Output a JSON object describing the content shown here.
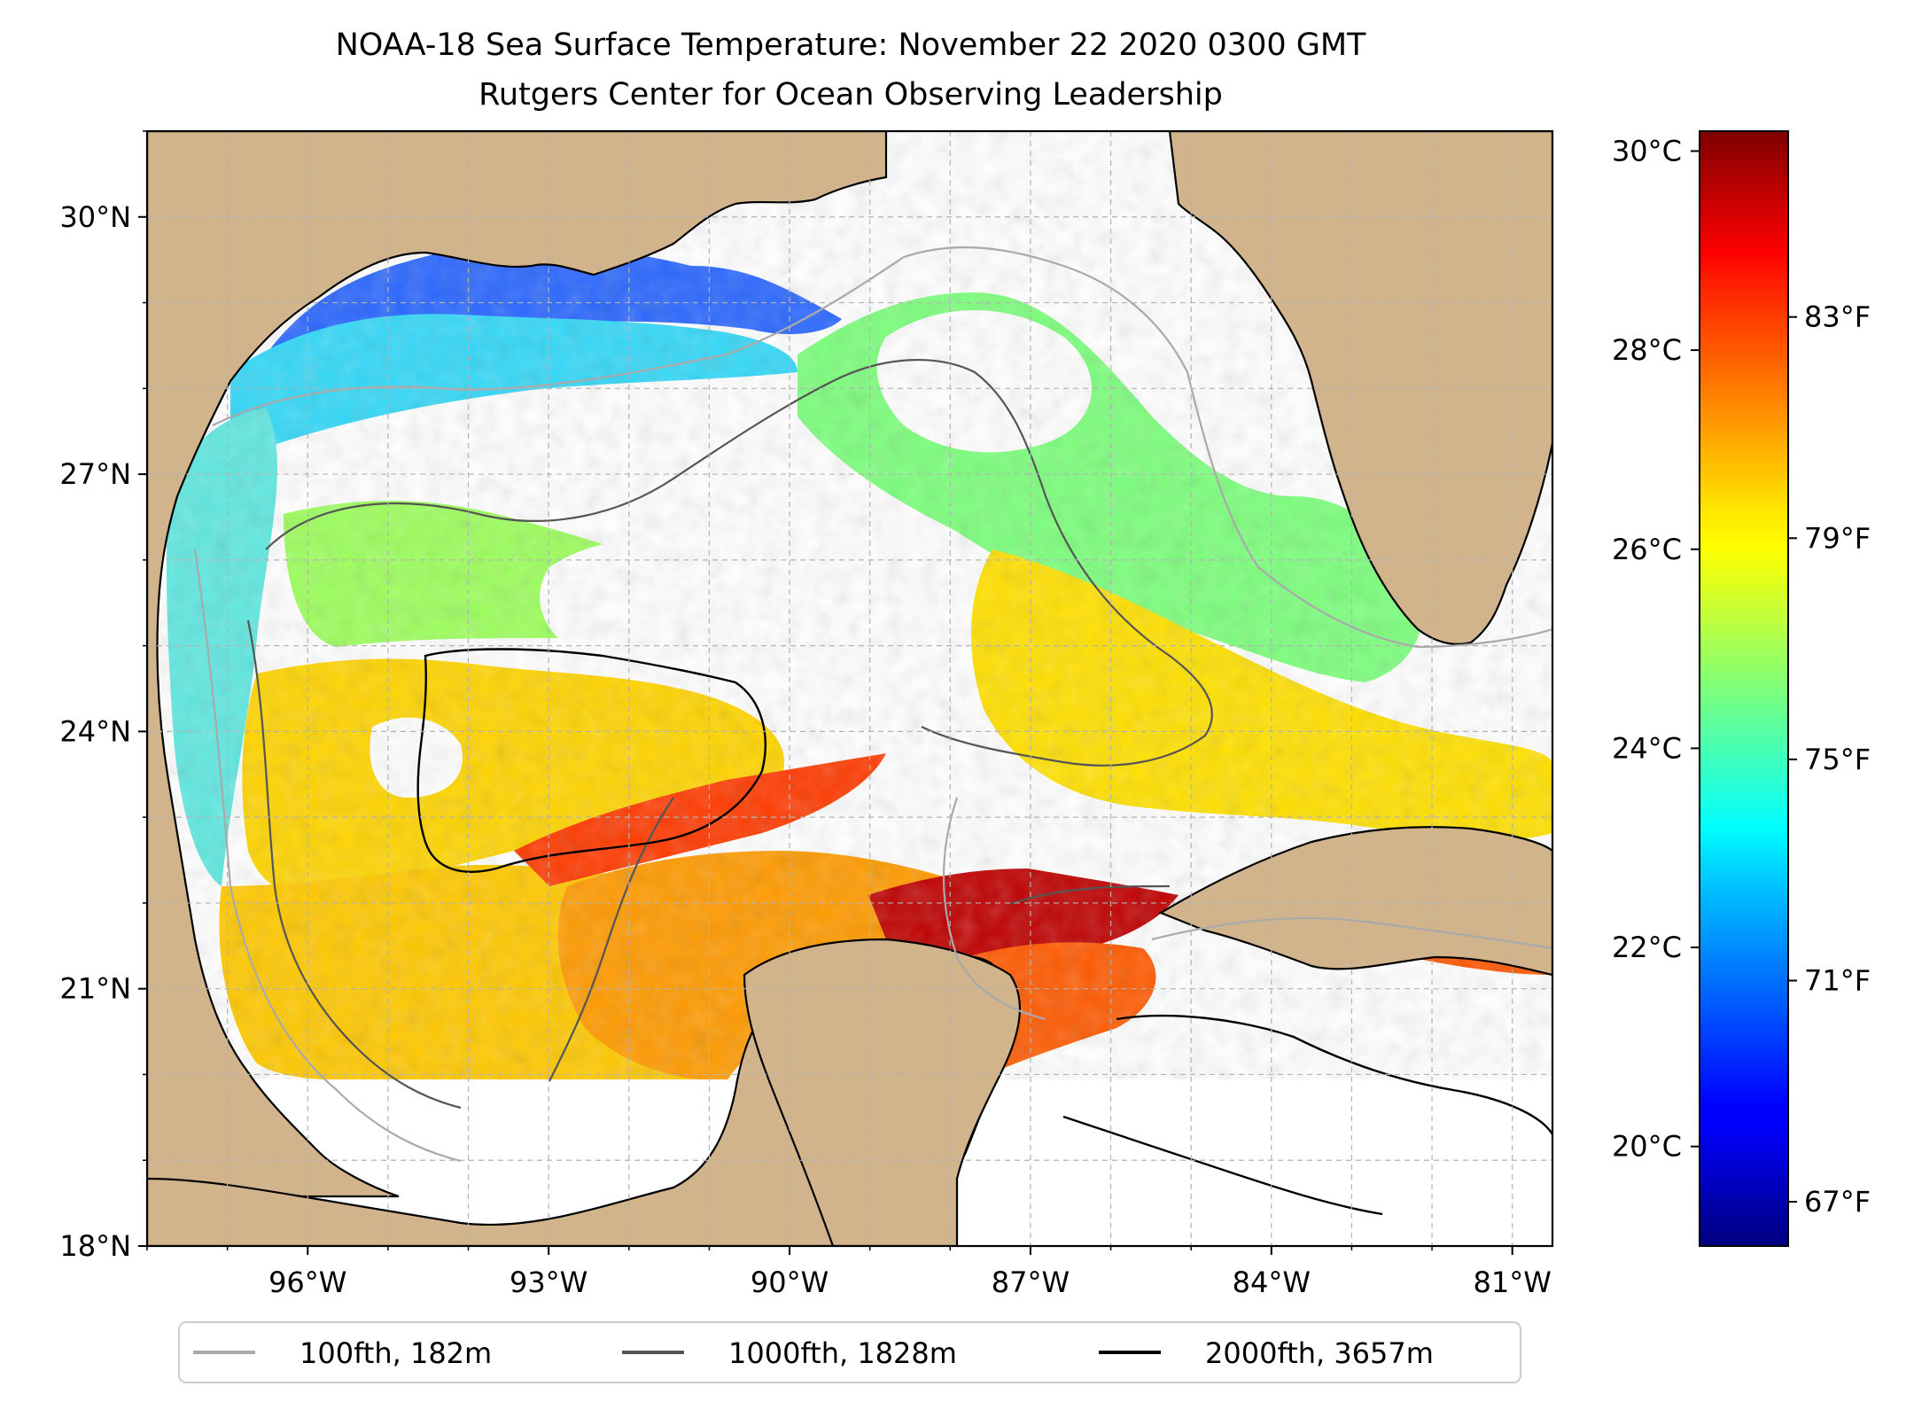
{
  "title": {
    "line1": "NOAA-18 Sea Surface Temperature: November 22 2020 0300 GMT",
    "line2": "Rutgers Center for Ocean Observing Leadership"
  },
  "map": {
    "lon_range": [
      -98.0,
      -80.5
    ],
    "lat_range": [
      18.0,
      31.0
    ],
    "x_ticks": [
      {
        "lon": -96,
        "label": "96°W"
      },
      {
        "lon": -93,
        "label": "93°W"
      },
      {
        "lon": -90,
        "label": "90°W"
      },
      {
        "lon": -87,
        "label": "87°W"
      },
      {
        "lon": -84,
        "label": "84°W"
      },
      {
        "lon": -81,
        "label": "81°W"
      }
    ],
    "y_ticks": [
      {
        "lat": 18,
        "label": "18°N"
      },
      {
        "lat": 21,
        "label": "21°N"
      },
      {
        "lat": 24,
        "label": "24°N"
      },
      {
        "lat": 27,
        "label": "27°N"
      },
      {
        "lat": 30,
        "label": "30°N"
      }
    ],
    "grid_step_deg": 1,
    "colors": {
      "land": "#d2b48c",
      "no_data": "#ffffff",
      "coast": "#000000",
      "grid": "#b3b3b3"
    }
  },
  "colorbar": {
    "cmap": "jet",
    "range_c": [
      19.0,
      30.2
    ],
    "celsius_ticks": [
      {
        "value": 20,
        "label": "20°C"
      },
      {
        "value": 22,
        "label": "22°C"
      },
      {
        "value": 24,
        "label": "24°C"
      },
      {
        "value": 26,
        "label": "26°C"
      },
      {
        "value": 28,
        "label": "28°C"
      },
      {
        "value": 30,
        "label": "30°C"
      }
    ],
    "fahrenheit_ticks": [
      {
        "value": 67,
        "label": "67°F"
      },
      {
        "value": 71,
        "label": "71°F"
      },
      {
        "value": 75,
        "label": "75°F"
      },
      {
        "value": 79,
        "label": "79°F"
      },
      {
        "value": 83,
        "label": "83°F"
      }
    ]
  },
  "legend": {
    "position": "bottom-center",
    "entries": [
      {
        "label": "100fth, 182m",
        "color": "#a9a9a9"
      },
      {
        "label": "1000fth, 1828m",
        "color": "#555555"
      },
      {
        "label": "2000fth, 3657m",
        "color": "#000000"
      }
    ]
  }
}
